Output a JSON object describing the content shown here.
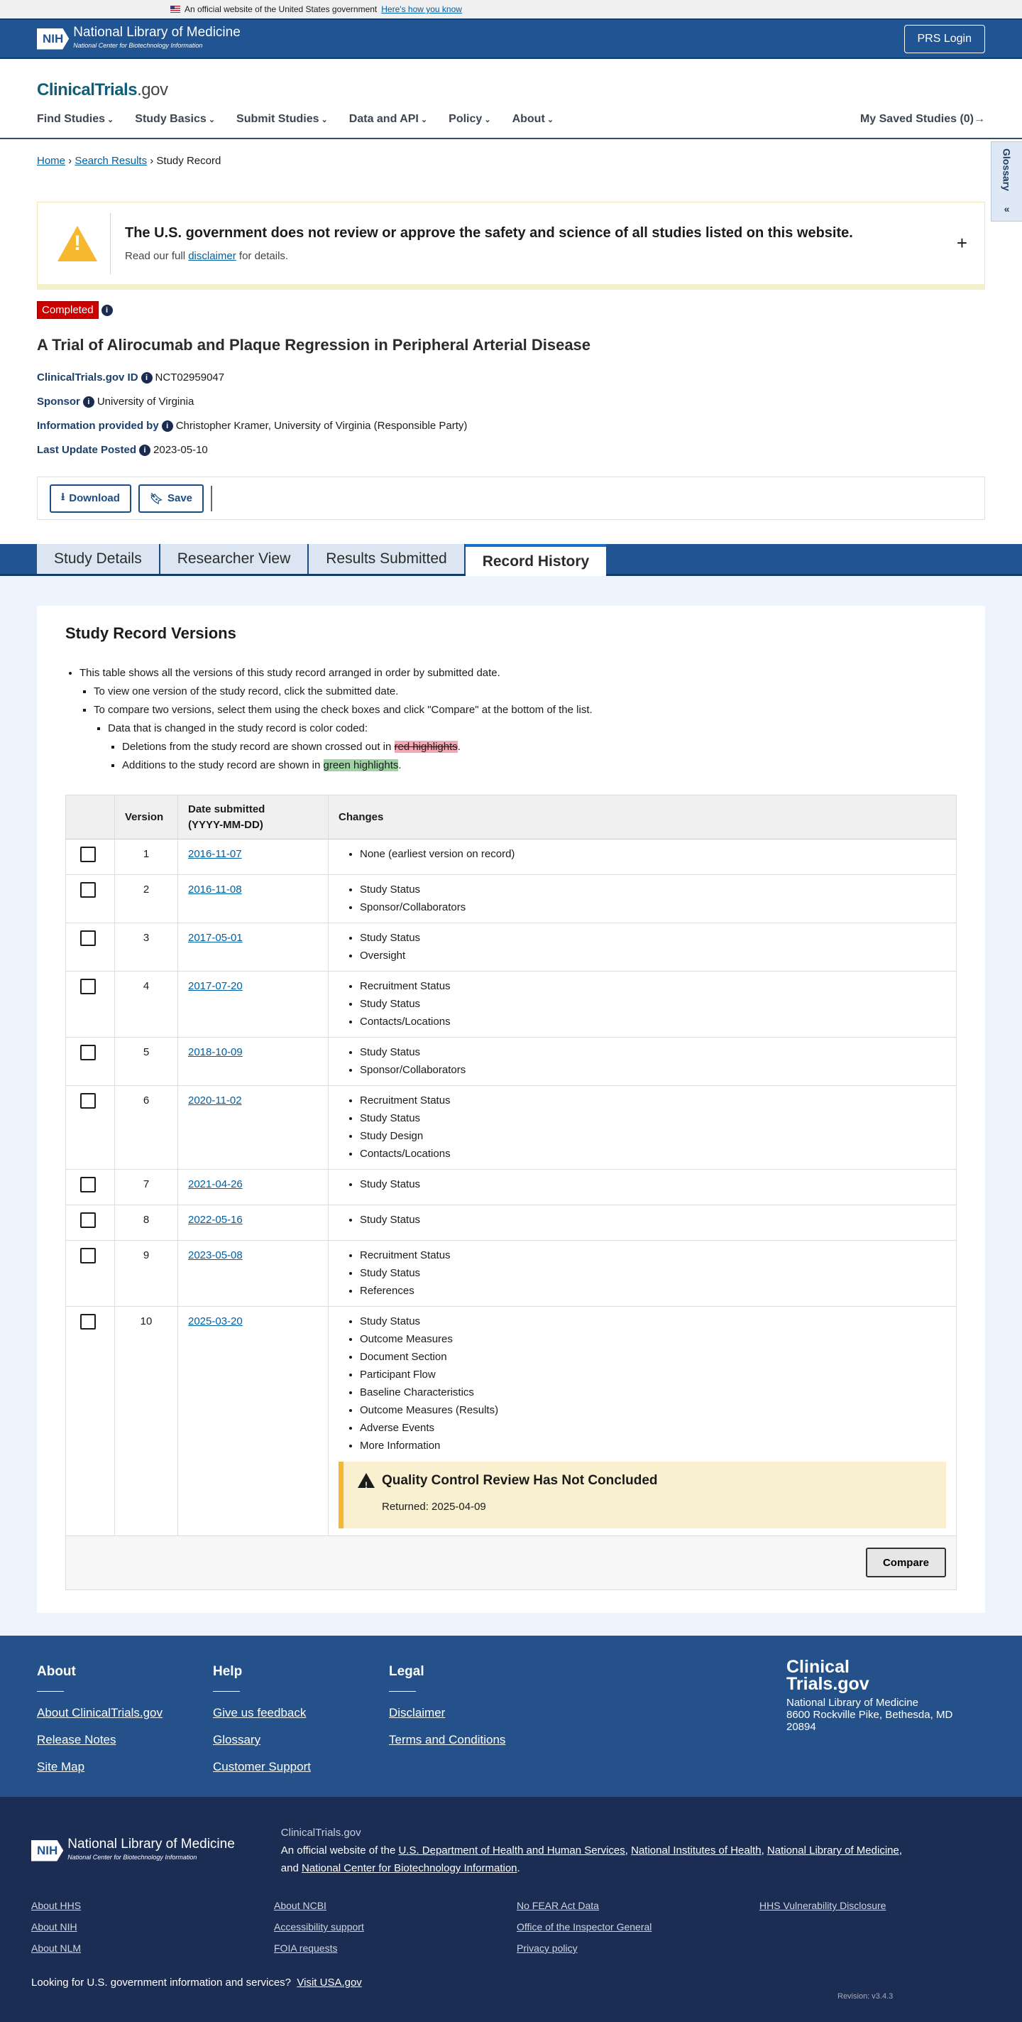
{
  "gov_banner": {
    "text": "An official website of the United States government",
    "link": "Here's how you know"
  },
  "nih": {
    "abbr": "NIH",
    "name": "National Library of Medicine",
    "sub": "National Center for Biotechnology Information",
    "login": "PRS Login"
  },
  "site": {
    "logo_main": "ClinicalTrials",
    "logo_suffix": ".gov"
  },
  "nav": {
    "items": [
      "Find Studies",
      "Study Basics",
      "Submit Studies",
      "Data and API",
      "Policy",
      "About"
    ],
    "saved": "My Saved Studies (0)→"
  },
  "glossary": {
    "label": "Glossary",
    "icon": "double-chevron-left"
  },
  "breadcrumb": {
    "home": "Home",
    "search": "Search Results",
    "current": "Study Record"
  },
  "disclaimer": {
    "title": "The U.S. government does not review or approve the safety and science of all studies listed on this website.",
    "pre": "Read our full ",
    "link": "disclaimer",
    "post": " for details.",
    "expand": "+"
  },
  "study": {
    "status": "Completed",
    "title": "A Trial of Alirocumab and Plaque Regression in Peripheral Arterial Disease",
    "meta": [
      {
        "k": "ClinicalTrials.gov ID",
        "v": "NCT02959047"
      },
      {
        "k": "Sponsor",
        "v": "University of Virginia"
      },
      {
        "k": "Information provided by",
        "v": "Christopher Kramer, University of Virginia (Responsible Party)"
      },
      {
        "k": "Last Update Posted",
        "v": "2023-05-10"
      }
    ],
    "download": "Download",
    "save": "Save"
  },
  "tabs": [
    "Study Details",
    "Researcher View",
    "Results Submitted",
    "Record History"
  ],
  "versions": {
    "heading": "Study Record Versions",
    "note1": "This table shows all the versions of this study record arranged in order by submitted date.",
    "note2": "To view one version of the study record, click the submitted date.",
    "note3": "To compare two versions, select them using the check boxes and click \"Compare\" at the bottom of the list.",
    "note4": "Data that is changed in the study record is color coded:",
    "note5_pre": "Deletions from the study record are shown crossed out in ",
    "note5_hl": "red highlights",
    "note5_post": ".",
    "note6_pre": "Additions to the study record are shown in ",
    "note6_hl": "green highlights",
    "note6_post": ".",
    "headers": {
      "version": "Version",
      "date": "Date submitted",
      "date_fmt": "(YYYY-MM-DD)",
      "changes": "Changes"
    },
    "rows": [
      {
        "version": "1",
        "date": "2016-11-07",
        "changes": [
          "None (earliest version on record)"
        ]
      },
      {
        "version": "2",
        "date": "2016-11-08",
        "changes": [
          "Study Status",
          "Sponsor/Collaborators"
        ]
      },
      {
        "version": "3",
        "date": "2017-05-01",
        "changes": [
          "Study Status",
          "Oversight"
        ]
      },
      {
        "version": "4",
        "date": "2017-07-20",
        "changes": [
          "Recruitment Status",
          "Study Status",
          "Contacts/Locations"
        ]
      },
      {
        "version": "5",
        "date": "2018-10-09",
        "changes": [
          "Study Status",
          "Sponsor/Collaborators"
        ]
      },
      {
        "version": "6",
        "date": "2020-11-02",
        "changes": [
          "Recruitment Status",
          "Study Status",
          "Study Design",
          "Contacts/Locations"
        ]
      },
      {
        "version": "7",
        "date": "2021-04-26",
        "changes": [
          "Study Status"
        ]
      },
      {
        "version": "8",
        "date": "2022-05-16",
        "changes": [
          "Study Status"
        ]
      },
      {
        "version": "9",
        "date": "2023-05-08",
        "changes": [
          "Recruitment Status",
          "Study Status",
          "References"
        ]
      },
      {
        "version": "10",
        "date": "2025-03-20",
        "changes": [
          "Study Status",
          "Outcome Measures",
          "Document Section",
          "Participant Flow",
          "Baseline Characteristics",
          "Outcome Measures (Results)",
          "Adverse Events",
          "More Information"
        ],
        "alert": {
          "title": "Quality Control Review Has Not Concluded",
          "text": "Returned: 2025-04-09"
        }
      }
    ],
    "compare": "Compare"
  },
  "footer": {
    "cols": [
      {
        "h": "About",
        "links": [
          "About ClinicalTrials.gov",
          "Release Notes",
          "Site Map"
        ]
      },
      {
        "h": "Help",
        "links": [
          "Give us feedback",
          "Glossary",
          "Customer Support"
        ]
      },
      {
        "h": "Legal",
        "links": [
          "Disclaimer",
          "Terms and Conditions"
        ]
      }
    ],
    "brand": {
      "name1": "Clinical",
      "name2": "Trials.gov",
      "org": "National Library of Medicine",
      "addr1": "8600 Rockville Pike, Bethesda, MD",
      "addr2": "20894"
    },
    "site": "ClinicalTrials.gov",
    "official_pre": "An official website of the ",
    "l1": "U.S. Department of Health and Human Services",
    "l2": "National Institutes of Health",
    "l3": "National Library of Medicine",
    "and": "and ",
    "l4": "National Center for Biotechnology Information",
    "links": [
      "About HHS",
      "About NCBI",
      "No FEAR Act Data",
      "HHS Vulnerability Disclosure",
      "About NIH",
      "Accessibility support",
      "Office of the Inspector General",
      "",
      "About NLM",
      "FOIA requests",
      "Privacy policy",
      ""
    ],
    "usa_pre": "Looking for U.S. government information and services?",
    "usa_link": "Visit USA.gov",
    "revision": "Revision: v3.4.3"
  },
  "colors": {
    "header": "#205493",
    "status": "#cc0000",
    "alert": "#f8f0cf",
    "footer": "#245189",
    "footer_dark": "#1b2d52"
  }
}
